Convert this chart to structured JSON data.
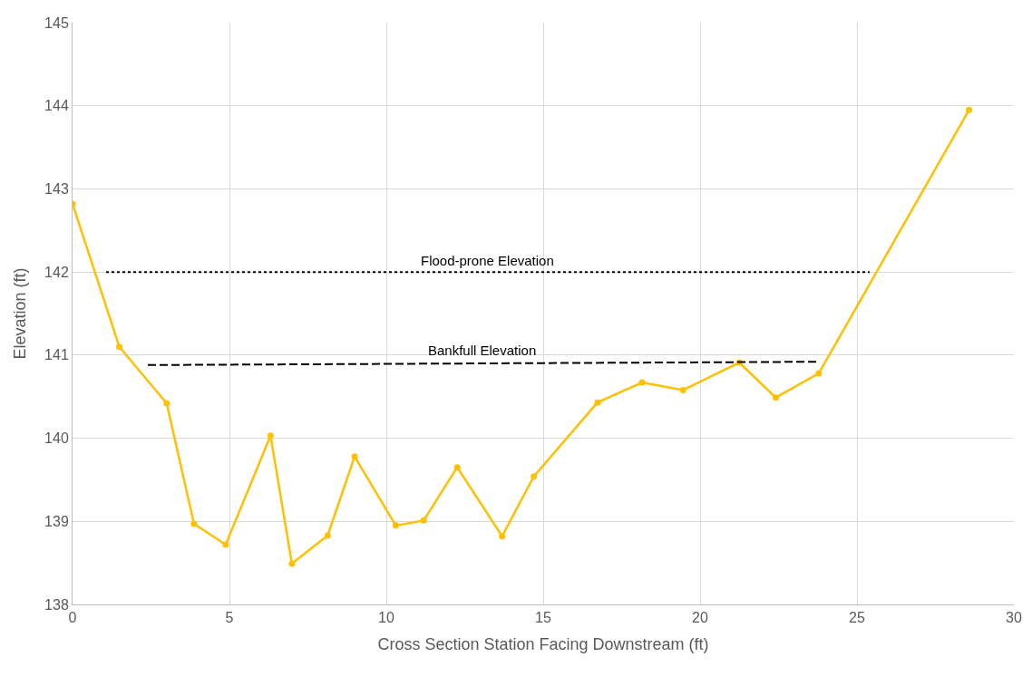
{
  "chart_data": {
    "type": "line",
    "xlabel": "Cross Section Station Facing Downstream (ft)",
    "ylabel": "Elevation (ft)",
    "xlim": [
      0,
      30
    ],
    "xticks": [
      0,
      5,
      10,
      15,
      20,
      25,
      30
    ],
    "ylim": [
      138,
      145
    ],
    "yticks": [
      138,
      139,
      140,
      141,
      142,
      143,
      144,
      145
    ],
    "grid": true,
    "legend": false,
    "marker": "circle",
    "line_style": "solid",
    "series": [
      {
        "color": "#ffc000",
        "x": [
          0,
          1.49,
          3.0,
          3.87,
          4.88,
          6.31,
          6.99,
          8.13,
          8.99,
          10.3,
          11.19,
          12.26,
          13.69,
          14.7,
          16.73,
          18.15,
          19.46,
          21.25,
          22.41,
          23.78,
          28.57
        ],
        "values": [
          142.82,
          141.1,
          140.42,
          138.97,
          138.72,
          140.03,
          138.49,
          138.83,
          139.78,
          138.95,
          139.01,
          139.65,
          138.82,
          139.54,
          140.43,
          140.67,
          140.58,
          140.91,
          140.49,
          140.78,
          143.95
        ]
      },
      {
        "name": "Flood-prone Elevation",
        "color": "#000000",
        "marker": "none",
        "line_style": "dotted",
        "x": [
          1.07,
          25.4
        ],
        "values": [
          142.0,
          142.0
        ]
      },
      {
        "name": "Bankfull Elevation",
        "color": "#000000",
        "marker": "none",
        "line_style": "dashed",
        "x": [
          2.4,
          23.7
        ],
        "values": [
          140.88,
          140.92
        ]
      }
    ]
  }
}
